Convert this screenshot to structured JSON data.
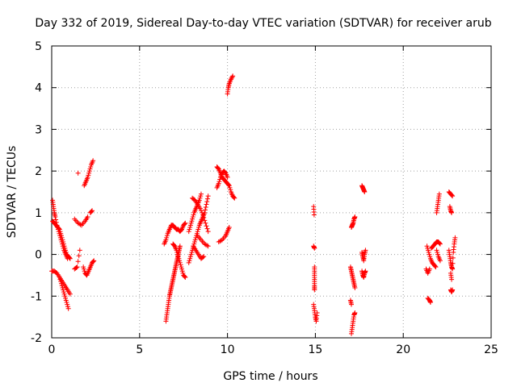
{
  "chart_data": {
    "type": "scatter",
    "title": "Day 332 of 2019, Sidereal Day-to-day VTEC variation (SDTVAR) for receiver arub",
    "xlabel": "GPS time / hours",
    "ylabel": "SDTVAR / TECUs",
    "xlim": [
      0,
      25
    ],
    "ylim": [
      -2,
      5
    ],
    "xticks": [
      0,
      5,
      10,
      15,
      20,
      25
    ],
    "yticks": [
      -2,
      -1,
      0,
      1,
      2,
      3,
      4,
      5
    ],
    "grid": true,
    "marker": "+",
    "marker_color": "#ff0000",
    "series": [
      {
        "name": "arub",
        "tracks": [
          [
            [
              0.05,
              1.3
            ],
            [
              0.1,
              1.15
            ],
            [
              0.15,
              1.0
            ],
            [
              0.2,
              0.9
            ],
            [
              0.3,
              0.7
            ],
            [
              0.4,
              0.55
            ],
            [
              0.5,
              0.4
            ],
            [
              0.6,
              0.25
            ],
            [
              0.7,
              0.1
            ],
            [
              0.8,
              0.0
            ],
            [
              0.9,
              -0.1
            ]
          ],
          [
            [
              0.05,
              0.8
            ],
            [
              0.15,
              0.75
            ],
            [
              0.25,
              0.7
            ],
            [
              0.35,
              0.65
            ],
            [
              0.45,
              0.6
            ],
            [
              0.55,
              0.45
            ],
            [
              0.65,
              0.3
            ],
            [
              0.75,
              0.15
            ],
            [
              0.85,
              0.0
            ],
            [
              0.95,
              -0.05
            ],
            [
              1.05,
              -0.1
            ]
          ],
          [
            [
              0.0,
              -0.4
            ],
            [
              0.15,
              -0.4
            ],
            [
              0.3,
              -0.45
            ],
            [
              0.45,
              -0.55
            ],
            [
              0.6,
              -0.65
            ],
            [
              0.75,
              -0.75
            ],
            [
              0.9,
              -0.85
            ],
            [
              1.05,
              -0.95
            ]
          ],
          [
            [
              0.45,
              -0.55
            ],
            [
              0.55,
              -0.7
            ],
            [
              0.65,
              -0.85
            ],
            [
              0.75,
              -1.0
            ],
            [
              0.85,
              -1.15
            ],
            [
              0.95,
              -1.3
            ]
          ],
          [
            [
              1.3,
              0.85
            ],
            [
              1.5,
              0.75
            ],
            [
              1.7,
              0.7
            ],
            [
              1.9,
              0.8
            ],
            [
              2.05,
              0.9
            ]
          ],
          [
            [
              1.5,
              1.95
            ]
          ],
          [
            [
              1.85,
              1.65
            ],
            [
              1.95,
              1.75
            ],
            [
              2.05,
              1.85
            ],
            [
              2.15,
              2.0
            ],
            [
              2.25,
              2.15
            ],
            [
              2.35,
              2.25
            ]
          ],
          [
            [
              2.2,
              1.0
            ],
            [
              2.3,
              1.05
            ]
          ],
          [
            [
              1.3,
              -0.35
            ],
            [
              1.45,
              -0.3
            ],
            [
              1.6,
              0.1
            ]
          ],
          [
            [
              1.8,
              -0.3
            ],
            [
              1.9,
              -0.45
            ],
            [
              2.0,
              -0.5
            ],
            [
              2.1,
              -0.4
            ],
            [
              2.2,
              -0.3
            ],
            [
              2.3,
              -0.2
            ],
            [
              2.4,
              -0.15
            ]
          ],
          [
            [
              6.5,
              -1.6
            ],
            [
              6.55,
              -1.45
            ],
            [
              6.6,
              -1.3
            ],
            [
              6.65,
              -1.15
            ],
            [
              6.7,
              -1.0
            ],
            [
              6.75,
              -0.9
            ],
            [
              6.8,
              -0.8
            ],
            [
              6.85,
              -0.7
            ],
            [
              6.9,
              -0.6
            ],
            [
              6.95,
              -0.5
            ],
            [
              7.0,
              -0.4
            ],
            [
              7.05,
              -0.3
            ],
            [
              7.1,
              -0.2
            ],
            [
              7.15,
              -0.1
            ],
            [
              7.2,
              0.0
            ],
            [
              7.25,
              0.1
            ],
            [
              7.3,
              0.2
            ]
          ],
          [
            [
              6.4,
              0.25
            ],
            [
              6.5,
              0.35
            ],
            [
              6.6,
              0.5
            ],
            [
              6.7,
              0.6
            ],
            [
              6.8,
              0.7
            ],
            [
              6.9,
              0.7
            ],
            [
              7.0,
              0.65
            ],
            [
              7.1,
              0.6
            ],
            [
              7.2,
              0.6
            ],
            [
              7.3,
              0.55
            ],
            [
              7.4,
              0.6
            ],
            [
              7.5,
              0.7
            ],
            [
              7.6,
              0.75
            ]
          ],
          [
            [
              6.9,
              0.25
            ],
            [
              7.0,
              0.2
            ],
            [
              7.1,
              0.1
            ],
            [
              7.2,
              -0.05
            ],
            [
              7.3,
              -0.2
            ],
            [
              7.4,
              -0.35
            ],
            [
              7.5,
              -0.5
            ],
            [
              7.6,
              -0.55
            ]
          ],
          [
            [
              7.8,
              -0.2
            ],
            [
              7.9,
              -0.05
            ],
            [
              8.0,
              0.1
            ],
            [
              8.1,
              0.25
            ],
            [
              8.2,
              0.4
            ],
            [
              8.3,
              0.55
            ],
            [
              8.4,
              0.7
            ],
            [
              8.5,
              0.8
            ],
            [
              8.6,
              0.9
            ],
            [
              8.7,
              1.0
            ],
            [
              8.8,
              1.2
            ],
            [
              8.9,
              1.4
            ]
          ],
          [
            [
              7.8,
              0.55
            ],
            [
              7.9,
              0.7
            ],
            [
              8.0,
              0.85
            ],
            [
              8.1,
              1.0
            ],
            [
              8.2,
              1.1
            ],
            [
              8.3,
              1.2
            ],
            [
              8.4,
              1.3
            ],
            [
              8.5,
              1.45
            ]
          ],
          [
            [
              8.0,
              1.35
            ],
            [
              8.15,
              1.3
            ],
            [
              8.3,
              1.2
            ],
            [
              8.45,
              1.1
            ],
            [
              8.6,
              0.95
            ],
            [
              8.75,
              0.75
            ],
            [
              8.9,
              0.55
            ]
          ],
          [
            [
              8.05,
              0.2
            ],
            [
              8.2,
              0.1
            ],
            [
              8.35,
              0.0
            ],
            [
              8.5,
              -0.1
            ],
            [
              8.65,
              -0.05
            ]
          ],
          [
            [
              8.3,
              0.45
            ],
            [
              8.5,
              0.35
            ],
            [
              8.7,
              0.25
            ],
            [
              8.9,
              0.2
            ]
          ],
          [
            [
              9.4,
              2.1
            ],
            [
              9.5,
              2.05
            ],
            [
              9.6,
              1.95
            ],
            [
              9.7,
              1.85
            ],
            [
              9.8,
              1.8
            ],
            [
              9.9,
              1.75
            ],
            [
              10.0,
              1.7
            ],
            [
              10.1,
              1.65
            ],
            [
              10.2,
              1.5
            ],
            [
              10.3,
              1.4
            ],
            [
              10.4,
              1.35
            ]
          ],
          [
            [
              9.4,
              1.6
            ],
            [
              9.5,
              1.7
            ],
            [
              9.6,
              1.85
            ],
            [
              9.7,
              1.95
            ],
            [
              9.8,
              2.0
            ],
            [
              9.9,
              1.95
            ],
            [
              10.0,
              1.85
            ]
          ],
          [
            [
              9.5,
              0.3
            ],
            [
              9.7,
              0.35
            ],
            [
              9.9,
              0.45
            ],
            [
              10.0,
              0.55
            ],
            [
              10.1,
              0.65
            ]
          ],
          [
            [
              10.0,
              3.85
            ],
            [
              10.05,
              4.0
            ],
            [
              10.1,
              4.1
            ],
            [
              10.2,
              4.2
            ],
            [
              10.3,
              4.28
            ]
          ],
          [
            [
              14.9,
              1.15
            ],
            [
              14.93,
              0.95
            ]
          ],
          [
            [
              14.9,
              0.2
            ],
            [
              14.95,
              0.15
            ]
          ],
          [
            [
              14.95,
              -0.3
            ],
            [
              14.95,
              -0.45
            ],
            [
              14.95,
              -0.6
            ],
            [
              14.95,
              -0.75
            ],
            [
              14.95,
              -0.85
            ]
          ],
          [
            [
              14.9,
              -1.2
            ],
            [
              14.95,
              -1.35
            ],
            [
              15.0,
              -1.5
            ],
            [
              15.05,
              -1.6
            ],
            [
              15.1,
              -1.4
            ]
          ],
          [
            [
              17.05,
              0.65
            ],
            [
              17.1,
              0.7
            ],
            [
              17.15,
              0.75
            ],
            [
              17.2,
              0.85
            ],
            [
              17.25,
              0.9
            ]
          ],
          [
            [
              17.0,
              -0.3
            ],
            [
              17.05,
              -0.4
            ],
            [
              17.1,
              -0.5
            ],
            [
              17.15,
              -0.6
            ],
            [
              17.2,
              -0.7
            ],
            [
              17.25,
              -0.8
            ]
          ],
          [
            [
              17.0,
              -1.1
            ],
            [
              17.05,
              -1.2
            ]
          ],
          [
            [
              17.05,
              -1.9
            ],
            [
              17.1,
              -1.75
            ],
            [
              17.15,
              -1.6
            ],
            [
              17.2,
              -1.45
            ],
            [
              17.25,
              -1.4
            ]
          ],
          [
            [
              17.65,
              1.65
            ],
            [
              17.7,
              1.6
            ],
            [
              17.75,
              1.55
            ],
            [
              17.8,
              1.5
            ]
          ],
          [
            [
              17.65,
              0.05
            ],
            [
              17.7,
              -0.05
            ],
            [
              17.75,
              -0.15
            ],
            [
              17.8,
              0.0
            ],
            [
              17.85,
              0.1
            ]
          ],
          [
            [
              17.65,
              -0.4
            ],
            [
              17.7,
              -0.5
            ],
            [
              17.75,
              -0.55
            ],
            [
              17.8,
              -0.45
            ],
            [
              17.85,
              -0.4
            ]
          ],
          [
            [
              21.4,
              -1.05
            ],
            [
              21.5,
              -1.1
            ],
            [
              21.55,
              -1.15
            ]
          ],
          [
            [
              21.35,
              0.2
            ],
            [
              21.45,
              0.05
            ],
            [
              21.55,
              -0.1
            ],
            [
              21.65,
              -0.2
            ],
            [
              21.75,
              -0.25
            ],
            [
              21.85,
              -0.3
            ]
          ],
          [
            [
              21.3,
              -0.35
            ],
            [
              21.4,
              -0.45
            ],
            [
              21.5,
              -0.35
            ]
          ],
          [
            [
              21.6,
              0.15
            ],
            [
              21.7,
              0.2
            ],
            [
              21.8,
              0.25
            ],
            [
              21.9,
              0.3
            ],
            [
              22.0,
              0.3
            ],
            [
              22.1,
              0.25
            ]
          ],
          [
            [
              21.9,
              1.0
            ],
            [
              21.95,
              1.15
            ],
            [
              22.0,
              1.3
            ],
            [
              22.05,
              1.45
            ]
          ],
          [
            [
              21.9,
              0.1
            ],
            [
              22.0,
              -0.05
            ],
            [
              22.1,
              -0.15
            ]
          ],
          [
            [
              22.6,
              1.5
            ],
            [
              22.7,
              1.45
            ],
            [
              22.8,
              1.4
            ]
          ],
          [
            [
              22.65,
              1.15
            ],
            [
              22.7,
              1.05
            ],
            [
              22.75,
              1.0
            ]
          ],
          [
            [
              22.6,
              0.1
            ],
            [
              22.65,
              -0.05
            ],
            [
              22.7,
              -0.2
            ],
            [
              22.75,
              -0.3
            ],
            [
              22.8,
              -0.35
            ],
            [
              22.85,
              0.05
            ],
            [
              22.9,
              0.25
            ],
            [
              22.95,
              0.4
            ]
          ],
          [
            [
              22.7,
              -0.45
            ],
            [
              22.75,
              -0.6
            ]
          ],
          [
            [
              22.7,
              -0.85
            ],
            [
              22.75,
              -0.9
            ],
            [
              22.8,
              -0.85
            ]
          ]
        ]
      }
    ]
  }
}
